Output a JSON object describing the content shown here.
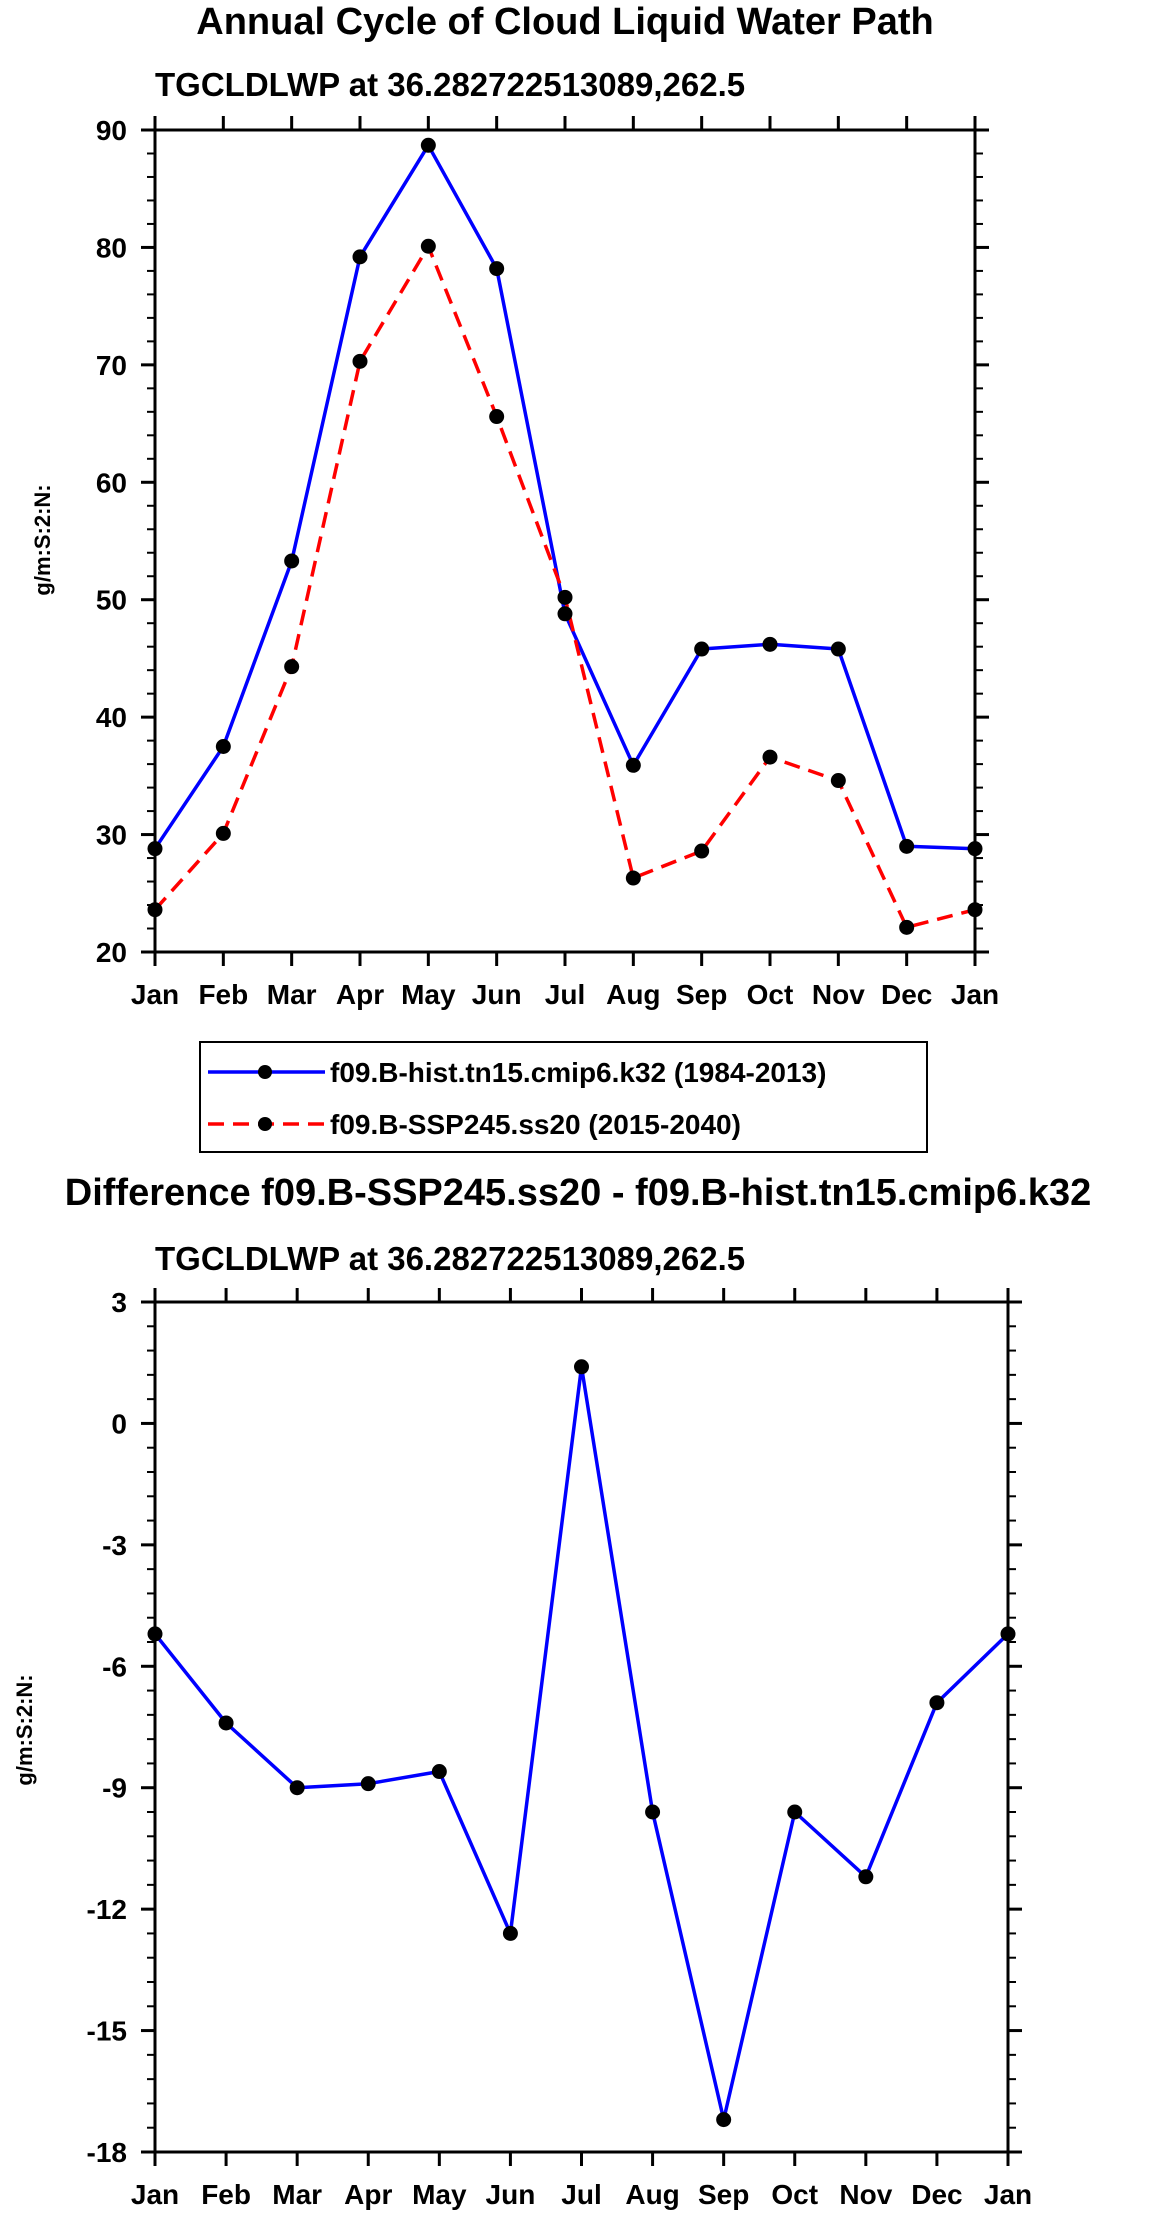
{
  "chart_data": [
    {
      "type": "line",
      "title": "Annual Cycle of Cloud Liquid Water Path",
      "subtitle": "TGCLDLWP at 36.282722513089,262.5",
      "ylabel": "g/m:S:2:N:",
      "xlabel": "",
      "categories": [
        "Jan",
        "Feb",
        "Mar",
        "Apr",
        "May",
        "Jun",
        "Jul",
        "Aug",
        "Sep",
        "Oct",
        "Nov",
        "Dec",
        "Jan"
      ],
      "ylim": [
        20,
        90
      ],
      "yticks": [
        "20",
        "30",
        "40",
        "50",
        "60",
        "70",
        "80",
        "90"
      ],
      "series": [
        {
          "name": "f09.B-hist.tn15.cmip6.k32 (1984-2013)",
          "color": "#0000ff",
          "dash": "solid",
          "values": [
            28.8,
            37.5,
            53.3,
            79.2,
            88.7,
            78.2,
            48.8,
            35.9,
            45.8,
            46.2,
            45.8,
            29.0,
            28.8
          ]
        },
        {
          "name": "f09.B-SSP245.ss20 (2015-2040)",
          "color": "#ff0000",
          "dash": "dashed",
          "values": [
            23.6,
            30.1,
            44.3,
            70.3,
            80.1,
            65.6,
            50.2,
            26.3,
            28.6,
            36.6,
            34.6,
            22.1,
            23.6
          ]
        }
      ],
      "legend_position": "bottom-center"
    },
    {
      "type": "line",
      "title": "Difference f09.B-SSP245.ss20 - f09.B-hist.tn15.cmip6.k32",
      "subtitle": "TGCLDLWP at 36.282722513089,262.5",
      "ylabel": "g/m:S:2:N:",
      "xlabel": "",
      "categories": [
        "Jan",
        "Feb",
        "Mar",
        "Apr",
        "May",
        "Jun",
        "Jul",
        "Aug",
        "Sep",
        "Oct",
        "Nov",
        "Dec",
        "Jan"
      ],
      "ylim": [
        -18,
        3
      ],
      "yticks": [
        "-18",
        "-15",
        "-12",
        "-9",
        "-6",
        "-3",
        "0",
        "3"
      ],
      "series": [
        {
          "name": "difference",
          "color": "#0000ff",
          "dash": "solid",
          "values": [
            -5.2,
            -7.4,
            -9.0,
            -8.9,
            -8.6,
            -12.6,
            1.4,
            -9.6,
            -17.2,
            -9.6,
            -11.2,
            -6.9,
            -5.2
          ]
        }
      ]
    }
  ]
}
